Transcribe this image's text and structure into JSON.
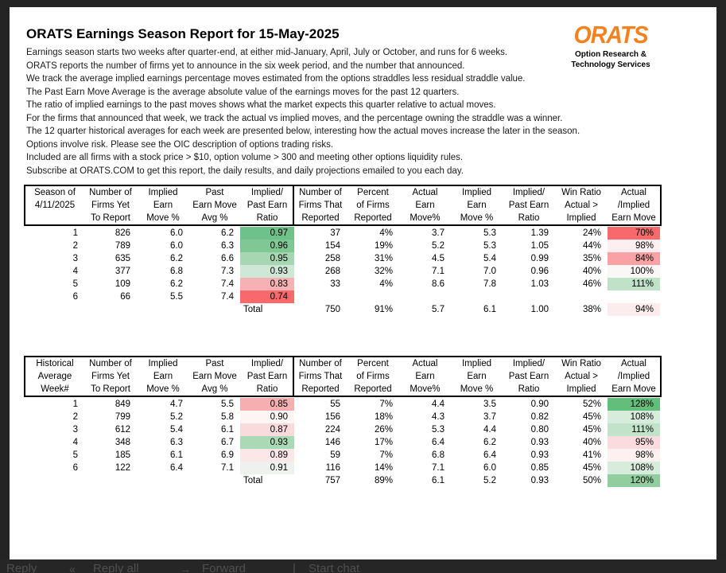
{
  "page": {
    "title": "ORATS Earnings Season Report for 15-May-2025",
    "intro_lines": [
      "Earnings season starts two weeks after quarter-end, at either mid-January, April, July or October, and runs for 6 weeks.",
      "ORATS reports the number of firms yet to announce in the six week period, and the number that announced.",
      "We track the average implied earnings percentage moves estimated from the options straddles less residual straddle value.",
      "The Past Earn Move Average is the average absolute value of the earnings moves for the past 12 quarters.",
      "The ratio of implied earnings to the past moves shows what the market expects this quarter relative to actual moves.",
      "For the firms that announced that week, we track the actual vs implied moves, and the percentage owning the straddle was a winner.",
      "The 12 quarter historical averages for each week are presented below, interesting how the actual moves increase the later in the season.",
      "Options involve risk. Please see the OIC description of options trading risks.",
      "Included are all firms with a stock price > $10, option volume > 300 and meeting other options liquidity rules.",
      "Subscribe at ORATS.COM to get this report, the daily results, and daily projections emailed to you each day."
    ],
    "logo": {
      "brand": "ORATS",
      "brand_color": "#F5821F",
      "tagline_line1": "Option Research &",
      "tagline_line2": "Technology Services"
    }
  },
  "tables": [
    {
      "columns": [
        [
          "Season of",
          "4/11/2025",
          ""
        ],
        [
          "Number of",
          "Firms Yet",
          "To Report"
        ],
        [
          "Implied",
          "Earn",
          "Move %"
        ],
        [
          "Past",
          "Earn Move",
          "Avg %"
        ],
        [
          "Implied/",
          "Past Earn",
          "Ratio"
        ],
        [
          "Number of",
          "Firms That",
          "Reported"
        ],
        [
          "Percent",
          "of Firms",
          "Reported"
        ],
        [
          "Actual",
          "Earn",
          "Move%"
        ],
        [
          "Implied",
          "Earn",
          "Move %"
        ],
        [
          "Implied/",
          "Past Earn",
          "Ratio"
        ],
        [
          "Win Ratio",
          "Actual >",
          "Implied"
        ],
        [
          "Actual",
          "/Implied",
          "Earn Move"
        ]
      ],
      "rows": [
        {
          "cells": [
            "1",
            "826",
            "6.0",
            "6.2",
            "0.97",
            "37",
            "4%",
            "3.7",
            "5.3",
            "1.39",
            "24%",
            "70%"
          ],
          "bg": {
            "4": "#6EC188",
            "11": "#F8696B"
          }
        },
        {
          "cells": [
            "2",
            "789",
            "6.0",
            "6.3",
            "0.96",
            "154",
            "19%",
            "5.2",
            "5.3",
            "1.05",
            "44%",
            "98%"
          ],
          "bg": {
            "4": "#7FC893",
            "11": "#FDEFF0"
          }
        },
        {
          "cells": [
            "3",
            "635",
            "6.2",
            "6.6",
            "0.95",
            "258",
            "31%",
            "4.5",
            "5.4",
            "0.99",
            "35%",
            "84%"
          ],
          "bg": {
            "4": "#A6D7B2",
            "11": "#F9A1A4"
          }
        },
        {
          "cells": [
            "4",
            "377",
            "6.8",
            "7.3",
            "0.93",
            "268",
            "32%",
            "7.1",
            "7.0",
            "0.96",
            "40%",
            "100%"
          ],
          "bg": {
            "4": "#CEE8D5",
            "11": "#FBF7F7"
          }
        },
        {
          "cells": [
            "5",
            "109",
            "6.2",
            "7.4",
            "0.83",
            "33",
            "4%",
            "8.6",
            "7.8",
            "1.03",
            "46%",
            "111%"
          ],
          "bg": {
            "4": "#F5B1B3",
            "11": "#BFE2C8"
          }
        },
        {
          "cells": [
            "6",
            "66",
            "5.5",
            "7.4",
            "0.74",
            "",
            "",
            "",
            "",
            "",
            "",
            ""
          ],
          "bg": {
            "4": "#F8696B"
          }
        },
        {
          "cells": [
            "",
            "",
            "",
            "",
            "Total",
            "750",
            "91%",
            "5.7",
            "6.1",
            "1.00",
            "38%",
            "94%"
          ],
          "bg": {
            "11": "#FCECED"
          },
          "left": [
            4
          ]
        }
      ]
    },
    {
      "columns": [
        [
          "Historical",
          "Average",
          "Week#"
        ],
        [
          "Number of",
          "Firms Yet",
          "To Report"
        ],
        [
          "Implied",
          "Earn",
          "Move %"
        ],
        [
          "Past",
          "Earn Move",
          "Avg %"
        ],
        [
          "Implied/",
          "Past Earn",
          "Ratio"
        ],
        [
          "Number of",
          "Firms That",
          "Reported"
        ],
        [
          "Percent",
          "of Firms",
          "Reported"
        ],
        [
          "Actual",
          "Earn",
          "Move%"
        ],
        [
          "Implied",
          "Earn",
          "Move %"
        ],
        [
          "Implied/",
          "Past Earn",
          "Ratio"
        ],
        [
          "Win Ratio",
          "Actual >",
          "Implied"
        ],
        [
          "Actual",
          "/Implied",
          "Earn Move"
        ]
      ],
      "rows": [
        {
          "cells": [
            "1",
            "849",
            "4.7",
            "5.5",
            "0.85",
            "55",
            "7%",
            "4.4",
            "3.5",
            "0.90",
            "52%",
            "128%"
          ],
          "bg": {
            "4": "#F5AFB1",
            "11": "#63BE7B"
          }
        },
        {
          "cells": [
            "2",
            "799",
            "5.2",
            "5.8",
            "0.90",
            "156",
            "18%",
            "4.3",
            "3.7",
            "0.82",
            "45%",
            "108%"
          ],
          "bg": {
            "4": "#FDF4F4",
            "11": "#D8ECDC"
          }
        },
        {
          "cells": [
            "3",
            "612",
            "5.4",
            "6.1",
            "0.87",
            "224",
            "26%",
            "5.3",
            "4.4",
            "0.80",
            "45%",
            "111%"
          ],
          "bg": {
            "4": "#FADBDC",
            "11": "#C1E3CA"
          }
        },
        {
          "cells": [
            "4",
            "348",
            "6.3",
            "6.7",
            "0.93",
            "146",
            "17%",
            "6.4",
            "6.2",
            "0.93",
            "40%",
            "95%"
          ],
          "bg": {
            "4": "#A9DAB5",
            "11": "#FBDCDE"
          }
        },
        {
          "cells": [
            "5",
            "185",
            "6.1",
            "6.9",
            "0.89",
            "59",
            "7%",
            "6.8",
            "6.4",
            "0.93",
            "41%",
            "98%"
          ],
          "bg": {
            "4": "#FBE7E8",
            "11": "#FDF0F0"
          }
        },
        {
          "cells": [
            "6",
            "122",
            "6.4",
            "7.1",
            "0.91",
            "116",
            "14%",
            "7.1",
            "6.0",
            "0.85",
            "45%",
            "108%"
          ],
          "bg": {
            "4": "#EDF2EE",
            "11": "#D8ECDC"
          }
        },
        {
          "cells": [
            "",
            "",
            "",
            "",
            "Total",
            "757",
            "89%",
            "6.1",
            "5.2",
            "0.93",
            "50%",
            "120%"
          ],
          "bg": {
            "11": "#90CE9F"
          },
          "left": [
            4
          ]
        }
      ]
    }
  ],
  "toolbar": {
    "reply": "Reply",
    "reply_all": "Reply all",
    "forward": "Forward",
    "start_chat": "Start chat"
  }
}
